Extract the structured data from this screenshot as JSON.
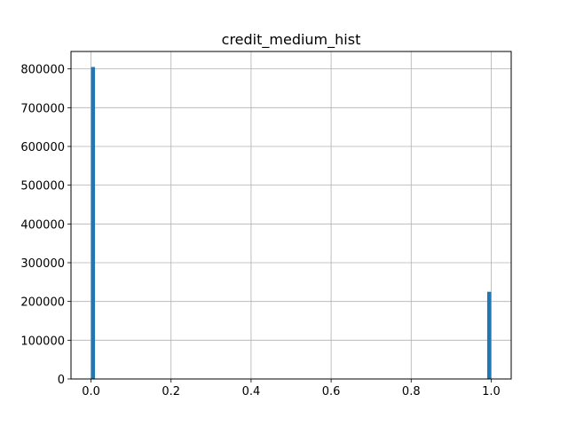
{
  "chart_data": {
    "type": "bar",
    "title": "credit_medium_hist",
    "xlabel": "",
    "ylabel": "",
    "grid": true,
    "bar_color": "#1f77b4",
    "xlim": [
      -0.05,
      1.05
    ],
    "ylim": [
      0,
      845000
    ],
    "xticks": [
      "0.0",
      "0.2",
      "0.4",
      "0.6",
      "0.8",
      "1.0"
    ],
    "yticks": [
      "0",
      "100000",
      "200000",
      "300000",
      "400000",
      "500000",
      "600000",
      "700000",
      "800000"
    ],
    "bins": [
      {
        "x0": 0.0,
        "x1": 0.01,
        "value": 805000
      },
      {
        "x0": 0.99,
        "x1": 1.0,
        "value": 225000
      }
    ]
  }
}
